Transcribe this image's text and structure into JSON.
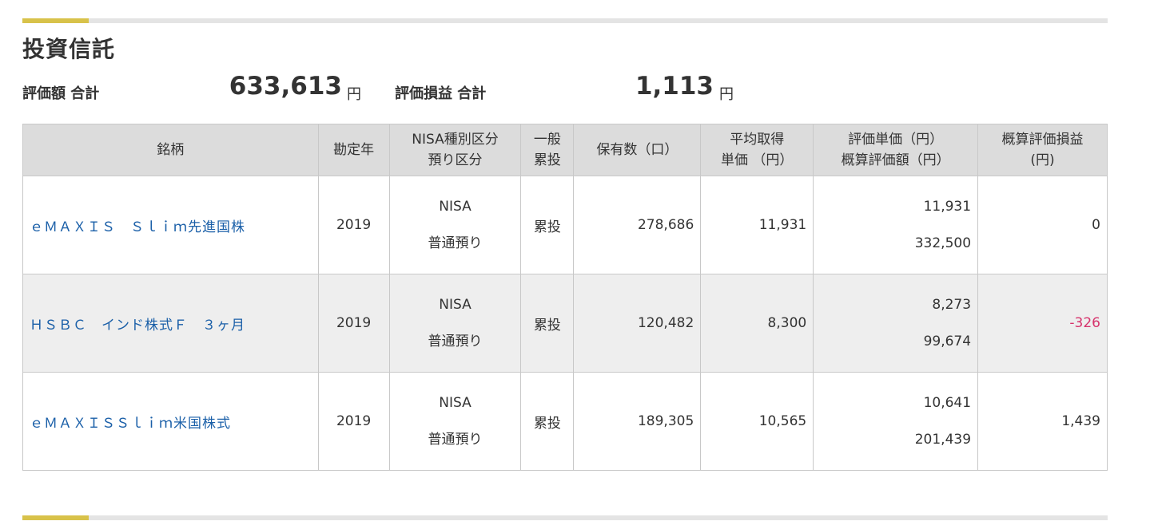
{
  "section": {
    "title": "投資信託",
    "total_value_label": "評価額 合計",
    "total_value": "633,613",
    "total_value_unit": "円",
    "total_gain_label": "評価損益 合計",
    "total_gain": "1,113",
    "total_gain_unit": "円"
  },
  "table": {
    "headers": {
      "name": "銘柄",
      "year": "勘定年",
      "nisa_1": "NISA種別区分",
      "nisa_2": "預り区分",
      "general_1": "一般",
      "general_2": "累投",
      "holdings": "保有数（口）",
      "avg_1": "平均取得",
      "avg_2": "単価 （円）",
      "eval_1": "評価単価（円）",
      "eval_2": "概算評価額（円）",
      "gain_1": "概算評価損益",
      "gain_2": "(円)"
    },
    "rows": [
      {
        "name": "ｅＭＡＸＩＳ　Ｓｌｉｍ先進国株",
        "year": "2019",
        "nisa_type": "NISA",
        "custody": "普通預り",
        "general": "累投",
        "holdings": "278,686",
        "avg_price": "11,931",
        "eval_price": "11,931",
        "eval_amount": "332,500",
        "gain": "0"
      },
      {
        "name": "ＨＳＢＣ　インド株式Ｆ　３ヶ月",
        "year": "2019",
        "nisa_type": "NISA",
        "custody": "普通預り",
        "general": "累投",
        "holdings": "120,482",
        "avg_price": "8,300",
        "eval_price": "8,273",
        "eval_amount": "99,674",
        "gain": "-326"
      },
      {
        "name": "ｅＭＡＸＩＳＳｌｉｍ米国株式",
        "year": "2019",
        "nisa_type": "NISA",
        "custody": "普通預り",
        "general": "累投",
        "holdings": "189,305",
        "avg_price": "10,565",
        "eval_price": "10,641",
        "eval_amount": "201,439",
        "gain": "1,439"
      }
    ]
  },
  "colors": {
    "accent_bar": "#d8c24a",
    "link": "#1a5fa8",
    "negative": "#d6336c",
    "header_bg": "#dcdcdc",
    "alt_row_bg": "#eeeeee"
  }
}
